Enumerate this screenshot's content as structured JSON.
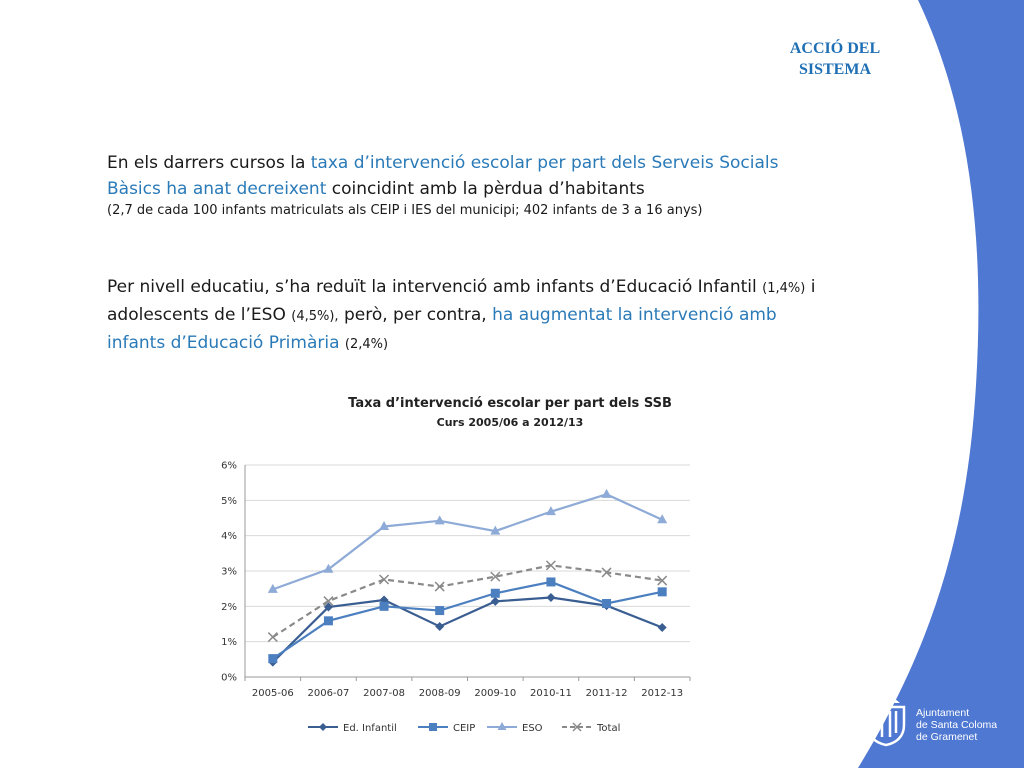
{
  "header": {
    "line1": "ACCIÓ DEL",
    "line2": "SISTEMA"
  },
  "paragraph1": {
    "t1": "En els darrers cursos la ",
    "h1": "taxa d’intervenció escolar per part dels Serveis Socials Bàsics ha anat decreixent",
    "t2": " coincidint amb la pèrdua d’habitants",
    "note": "(2,7 de cada 100 infants matriculats als CEIP i IES del municipi; 402 infants de 3 a 16 anys)"
  },
  "paragraph2": {
    "t1": "Per nivell educatiu, s’ha reduït la intervenció amb infants d’Educació Infantil ",
    "s1": "(1,4%)",
    "t2": " i adolescents de l’ESO ",
    "s2": "(4,5%),",
    "t3": " però, per contra, ",
    "h1": "ha augmentat la intervenció amb infants d’Educació Primària",
    "t4": " ",
    "s3": "(2,4%)"
  },
  "chart_data": {
    "type": "line",
    "title": "Taxa d’intervenció escolar per part dels SSB",
    "subtitle": "Curs 2005/06 a 2012/13",
    "categories": [
      "2005-06",
      "2006-07",
      "2007-08",
      "2008-09",
      "2009-10",
      "2010-11",
      "2011-12",
      "2012-13"
    ],
    "ylim": [
      0,
      6
    ],
    "yticks": [
      0,
      1,
      2,
      3,
      4,
      5,
      6
    ],
    "ytick_labels": [
      "0%",
      "1%",
      "2%",
      "3%",
      "4%",
      "5%",
      "6%"
    ],
    "grid": true,
    "legend": "bottom",
    "series": [
      {
        "name": "Ed. Infantil",
        "values": [
          0.42,
          1.98,
          2.18,
          1.43,
          2.14,
          2.25,
          2.02,
          1.4
        ],
        "color": "#3a5e92",
        "marker": "diamond",
        "dashed": false
      },
      {
        "name": "CEIP",
        "values": [
          0.52,
          1.59,
          2.0,
          1.88,
          2.37,
          2.69,
          2.08,
          2.41
        ],
        "color": "#4c7fbf",
        "marker": "square",
        "dashed": false
      },
      {
        "name": "ESO",
        "values": [
          2.48,
          3.05,
          4.26,
          4.42,
          4.13,
          4.68,
          5.17,
          4.45
        ],
        "color": "#8eaad6",
        "marker": "triangle",
        "dashed": false
      },
      {
        "name": "Total",
        "values": [
          1.13,
          2.15,
          2.76,
          2.56,
          2.84,
          3.16,
          2.96,
          2.73
        ],
        "color": "#8a8a8a",
        "marker": "x",
        "dashed": true
      }
    ]
  },
  "logo": {
    "line1": "Ajuntament",
    "line2": "de Santa Coloma",
    "line3": "de Gramenet"
  },
  "colors": {
    "accent": "#1f6fb5",
    "band": "#4f78d2",
    "highlight": "#2a7ab8"
  }
}
